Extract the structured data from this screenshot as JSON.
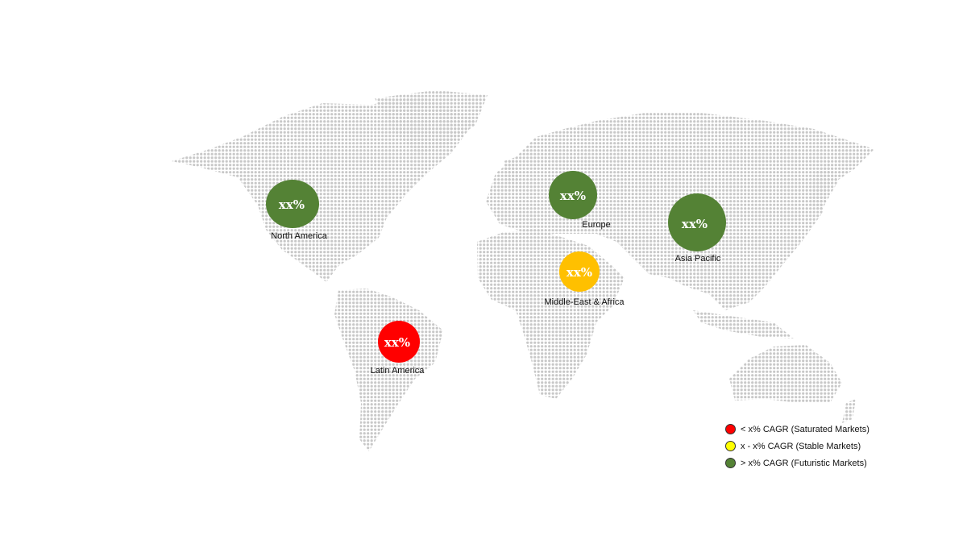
{
  "regions": [
    {
      "name": "North America",
      "value": "xx%",
      "color": "#548235"
    },
    {
      "name": "Europe",
      "value": "xx%",
      "color": "#548235"
    },
    {
      "name": "Asia Pacific",
      "value": "xx%",
      "color": "#548235"
    },
    {
      "name": "Middle-East & Africa",
      "value": "xx%",
      "color": "#FFC000"
    },
    {
      "name": "Latin America",
      "value": "xx%",
      "color": "#FF0000"
    }
  ],
  "legend": [
    {
      "label": "< x% CAGR (Saturated Markets)",
      "color": "#FF0000"
    },
    {
      "label": "x - x% CAGR (Stable Markets)",
      "color": "#FFFF00"
    },
    {
      "label": "> x% CAGR (Futuristic Markets)",
      "color": "#548235"
    }
  ],
  "map_dot_color": "#c8c8c8"
}
